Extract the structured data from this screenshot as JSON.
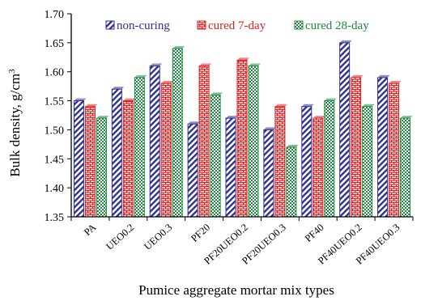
{
  "chart_data": {
    "type": "bar",
    "xlabel": "Pumice aggregate mortar mix types",
    "ylabel": "Bulk density, g/cm",
    "ylabel_superscript": "3",
    "ylim": [
      1.35,
      1.7
    ],
    "yticks": [
      "1.35",
      "1.40",
      "1.45",
      "1.50",
      "1.55",
      "1.60",
      "1.65",
      "1.70"
    ],
    "grid": false,
    "legend_position": "top",
    "categories": [
      "PA",
      "UEO0.2",
      "UEO0.3",
      "PF20",
      "PF20UEO0.2",
      "PF20UEO0.3",
      "PF40",
      "PF40UEO0.2",
      "PF40UEO0.3"
    ],
    "series": [
      {
        "name": "non-curing",
        "color": "#2e3192",
        "pattern": "diagonal-stripes",
        "values": [
          1.55,
          1.57,
          1.61,
          1.51,
          1.52,
          1.5,
          1.54,
          1.65,
          1.59
        ]
      },
      {
        "name": "cured 7-day",
        "color": "#e02020",
        "pattern": "brick",
        "values": [
          1.54,
          1.55,
          1.58,
          1.61,
          1.62,
          1.54,
          1.52,
          1.59,
          1.58
        ]
      },
      {
        "name": "cured 28-day",
        "color": "#1d8a3e",
        "pattern": "checker",
        "values": [
          1.52,
          1.59,
          1.64,
          1.56,
          1.61,
          1.47,
          1.55,
          1.54,
          1.52
        ]
      }
    ]
  }
}
